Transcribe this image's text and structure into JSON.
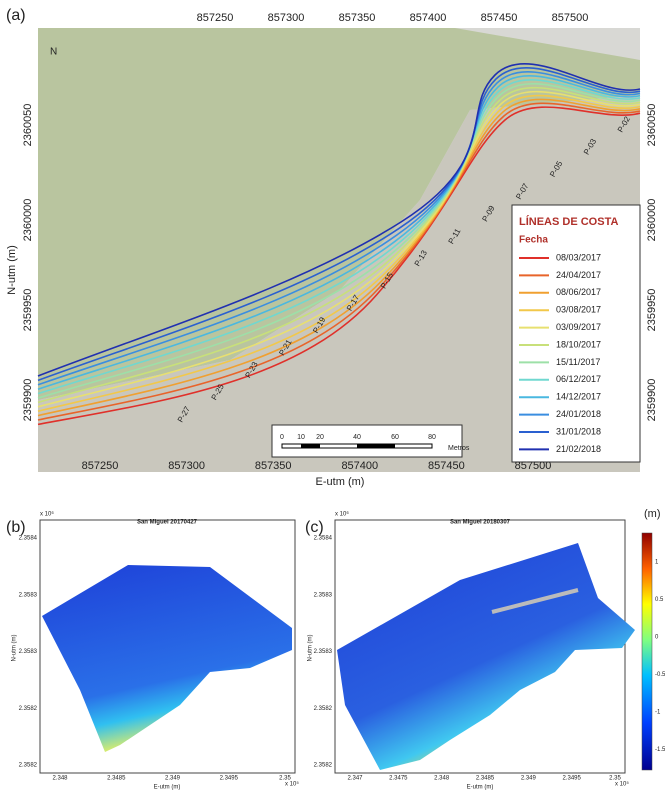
{
  "panel_a": {
    "label": "(a)",
    "x_ticks_top": [
      "857250",
      "857300",
      "857350",
      "857400",
      "857450",
      "857500"
    ],
    "x_ticks_bottom": [
      "857250",
      "857300",
      "857350",
      "857400",
      "857450",
      "857500"
    ],
    "y_ticks_left": [
      "2359900",
      "2359950",
      "2360000",
      "2360050"
    ],
    "y_ticks_right": [
      "2359900",
      "2359950",
      "2360000",
      "2360050"
    ],
    "x_label": "E-utm (m)",
    "y_label": "N-utm (m)",
    "north": "N",
    "legend": {
      "title": "LÍNEAS DE COSTA",
      "subtitle": "Fecha",
      "entries": [
        {
          "name": "08/03/2017",
          "color": "#e0302a"
        },
        {
          "name": "24/04/2017",
          "color": "#e8642a"
        },
        {
          "name": "08/06/2017",
          "color": "#f0a030"
        },
        {
          "name": "03/08/2017",
          "color": "#f2c84a"
        },
        {
          "name": "03/09/2017",
          "color": "#e8e070"
        },
        {
          "name": "18/10/2017",
          "color": "#c8e07a"
        },
        {
          "name": "15/11/2017",
          "color": "#9de0a8"
        },
        {
          "name": "06/12/2017",
          "color": "#70d8d0"
        },
        {
          "name": "14/12/2017",
          "color": "#4ab8e0"
        },
        {
          "name": "24/01/2018",
          "color": "#3a8ee0"
        },
        {
          "name": "31/01/2018",
          "color": "#2a60d0"
        },
        {
          "name": "21/02/2018",
          "color": "#2030b0"
        }
      ]
    },
    "scale_bar": {
      "labels": [
        "0",
        "10",
        "20",
        "40",
        "60",
        "80"
      ],
      "unit": "Metros"
    },
    "profiles": [
      "P-02",
      "P-03",
      "P-05",
      "P-07",
      "P-09",
      "P-11",
      "P-13",
      "P-15",
      "P-17",
      "P-19",
      "P-21",
      "P-23",
      "P-25",
      "P-27"
    ]
  },
  "panel_b": {
    "label": "(b)",
    "title": "San Miguel 20170427",
    "y_exponent": "x 10⁶",
    "x_exponent": "x 10⁵",
    "y_ticks": [
      "2.3584",
      "2.3583",
      "2.3583",
      "2.3582",
      "2.3582"
    ],
    "x_ticks": [
      "2.348",
      "2.3485",
      "2.349",
      "2.3495",
      "2.35"
    ],
    "x_label": "E-utm (m)",
    "y_label": "N-utm (m)"
  },
  "panel_c": {
    "label": "(c)",
    "title": "San Miguel 20180307",
    "y_exponent": "x 10⁶",
    "x_exponent": "x 10⁵",
    "y_ticks": [
      "2.3584",
      "2.3583",
      "2.3583",
      "2.3582",
      "2.3582"
    ],
    "x_ticks": [
      "2.347",
      "2.3475",
      "2.348",
      "2.3485",
      "2.349",
      "2.3495",
      "2.35"
    ],
    "x_label": "E-utm (m)",
    "y_label": "N-utm (m)",
    "colorbar": {
      "unit": "(m)",
      "ticks": [
        "1",
        "0.5",
        "0",
        "-0.5",
        "-1",
        "-1.5"
      ]
    }
  }
}
